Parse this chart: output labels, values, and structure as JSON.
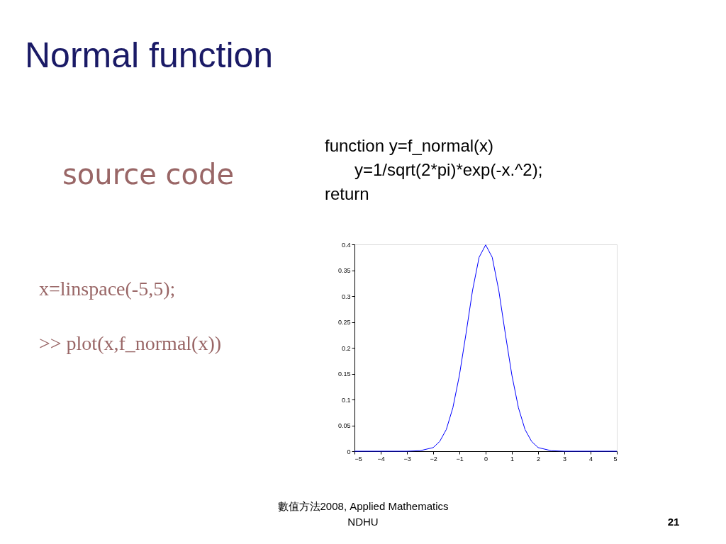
{
  "chart_data": {
    "type": "line",
    "title": "Normal function",
    "x": [
      -5,
      -4,
      -3,
      -2.5,
      -2,
      -1.75,
      -1.5,
      -1.25,
      -1,
      -0.75,
      -0.5,
      -0.25,
      0,
      0.25,
      0.5,
      0.75,
      1,
      1.25,
      1.5,
      1.75,
      2,
      2.5,
      3,
      4,
      5
    ],
    "values": [
      0,
      0,
      0,
      0.001,
      0.007,
      0.019,
      0.042,
      0.084,
      0.147,
      0.227,
      0.311,
      0.375,
      0.399,
      0.375,
      0.311,
      0.227,
      0.147,
      0.084,
      0.042,
      0.019,
      0.007,
      0.001,
      0,
      0,
      0
    ],
    "color": "#0000ff",
    "xlim": [
      -5,
      5
    ],
    "ylim": [
      0,
      0.4
    ],
    "xticks": [
      -5,
      -4,
      -3,
      -2,
      -1,
      0,
      1,
      2,
      3,
      4,
      5
    ],
    "yticks": [
      0,
      0.05,
      0.1,
      0.15,
      0.2,
      0.25,
      0.3,
      0.35,
      0.4
    ],
    "grid": false,
    "annotations": [
      "source code",
      "function y=f_normal(x)",
      "y=1/sqrt(2*pi)*exp(-x.^2);",
      "return",
      "x=linspace(-5,5);",
      ">> plot(x,f_normal(x))",
      "數值方法2008, Applied Mathematics",
      "NDHU",
      "21"
    ]
  }
}
